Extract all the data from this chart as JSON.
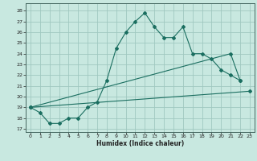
{
  "bg_color": "#c8e8e0",
  "grid_color": "#a0c8c0",
  "line_color": "#1a6e60",
  "xlabel": "Humidex (Indice chaleur)",
  "xlim": [
    -0.5,
    23.5
  ],
  "ylim": [
    16.7,
    28.7
  ],
  "yticks": [
    17,
    18,
    19,
    20,
    21,
    22,
    23,
    24,
    25,
    26,
    27,
    28
  ],
  "xticks": [
    0,
    1,
    2,
    3,
    4,
    5,
    6,
    7,
    8,
    9,
    10,
    11,
    12,
    13,
    14,
    15,
    16,
    17,
    18,
    19,
    20,
    21,
    22,
    23
  ],
  "line1_x": [
    0,
    1,
    2,
    3,
    4,
    5,
    6,
    7,
    8,
    9,
    10,
    11,
    12,
    13,
    14,
    15,
    16,
    17,
    18,
    19,
    20,
    21,
    22
  ],
  "line1_y": [
    19.0,
    18.5,
    17.5,
    17.5,
    18.0,
    18.0,
    19.0,
    19.5,
    21.5,
    24.5,
    26.0,
    27.0,
    27.8,
    26.5,
    25.5,
    25.5,
    26.5,
    24.0,
    24.0,
    23.5,
    22.5,
    22.0,
    21.5
  ],
  "line2_x": [
    0,
    23
  ],
  "line2_y": [
    19.0,
    20.5
  ],
  "line3_x": [
    0,
    21,
    22
  ],
  "line3_y": [
    19.0,
    24.0,
    21.5
  ]
}
